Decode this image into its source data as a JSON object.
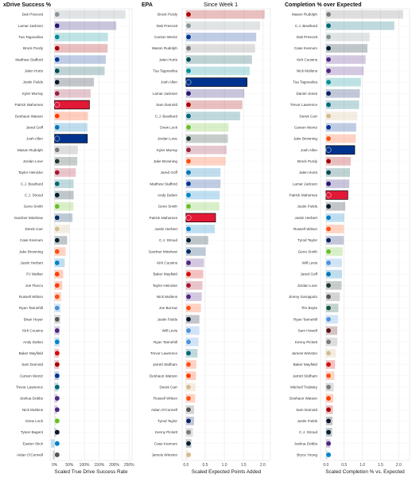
{
  "chart_data": [
    {
      "type": "bar",
      "orientation": "horizontal",
      "title": "xDrive Success %",
      "subtitle": "",
      "xlabel": "Scaled True Drive Success Rate",
      "xlim": [
        -0.15,
        2.6
      ],
      "xticks": [
        0,
        0.5,
        1.0,
        1.5,
        2.0,
        2.5
      ],
      "xtick_labels": [
        "0%",
        "50%",
        "100%",
        "150%",
        "200%",
        "250%"
      ],
      "grid": true,
      "categories": [
        "Dak Prescott",
        "Lamar Jackson",
        "Tua Tagovailoa",
        "Brock Purdy",
        "Matthew Stafford",
        "Jalen Hurts",
        "Justin Fields",
        "Kyler Murray",
        "Patrick Mahomes",
        "Deshaun Watson",
        "Jared Goff",
        "Josh Allen",
        "Mason Rudolph",
        "Jordan Love",
        "Taylor Heinicke",
        "C.J. Beathard",
        "C.J. Stroud",
        "Geno Smith",
        "Gardner Minshew",
        "Derek Carr",
        "Case Keenum",
        "Jake Browning",
        "Justin Herbert",
        "PJ Walker",
        "Joe Flacco",
        "Russell Wilson",
        "Ryan Tannehill",
        "Brian Hoyer",
        "Kirk Cousins",
        "Andy Dalton",
        "Baker Mayfield",
        "Sam Darnold",
        "Carson Wentz",
        "Trevor Lawrence",
        "Joshua Dobbs",
        "Nick Mullens",
        "Drew Lock",
        "Tyson Bagent",
        "Easton Stick",
        "Aidan O'Connell"
      ],
      "values": [
        2.38,
        2.07,
        1.79,
        1.78,
        1.72,
        1.68,
        1.32,
        1.21,
        1.17,
        1.12,
        1.1,
        1.1,
        0.78,
        0.76,
        0.71,
        0.64,
        0.64,
        0.63,
        0.6,
        0.5,
        0.42,
        0.37,
        0.34,
        0.29,
        0.26,
        0.22,
        0.2,
        0.19,
        0.17,
        0.16,
        0.15,
        0.15,
        0.14,
        0.13,
        0.1,
        0.09,
        0.06,
        0.05,
        -0.12,
        -0.06
      ],
      "teams": [
        "DAL",
        "BAL",
        "MIA",
        "SF",
        "LAR",
        "PHI",
        "CHI",
        "ARI",
        "KC",
        "CLE",
        "DET",
        "BUF",
        "PIT",
        "GB",
        "ATL",
        "JAX",
        "HOU",
        "SEA",
        "IND",
        "NO",
        "HOU",
        "CIN",
        "LAC",
        "CLE",
        "CLE",
        "DEN",
        "TEN",
        "LV",
        "MIN",
        "CAR",
        "TB",
        "SF",
        "LAR",
        "JAX",
        "MIN",
        "MIN",
        "SEA",
        "CHI",
        "LAC",
        "LV"
      ],
      "highlight": [
        "Patrick Mahomes",
        "Josh Allen"
      ]
    },
    {
      "type": "bar",
      "orientation": "horizontal",
      "title": "EPA",
      "subtitle": "Since Week 1",
      "xlabel": "Scaled Expected Points Added",
      "xlim": [
        -0.1,
        2.2
      ],
      "xticks": [
        0,
        0.5,
        1.0,
        1.5,
        2.0
      ],
      "xtick_labels": [
        "0.0",
        "0.5",
        "1.0",
        "1.5",
        "2.0"
      ],
      "grid": true,
      "categories": [
        "Brock Purdy",
        "Dak Prescott",
        "Carson Wentz",
        "Mason Rudolph",
        "Jalen Hurts",
        "Tua Tagovailoa",
        "Josh Allen",
        "Lamar Jackson",
        "Sam Darnold",
        "C.J. Beathard",
        "Drew Lock",
        "Jordan Love",
        "Kyler Murray",
        "Jake Browning",
        "Jared Goff",
        "Matthew Stafford",
        "Andy Dalton",
        "Geno Smith",
        "Patrick Mahomes",
        "Justin Herbert",
        "C.J. Stroud",
        "Gardner Minshew",
        "Kirk Cousins",
        "Baker Mayfield",
        "Taylor Heinicke",
        "Nick Mullens",
        "Joe Burrow",
        "Justin Fields",
        "Will Levis",
        "Ryan Tannehill",
        "Trevor Lawrence",
        "Jarrett Stidham",
        "Deshaun Watson",
        "Derek Carr",
        "Russell Wilson",
        "Aidan O'Connell",
        "Tyrod Taylor",
        "Kenny Pickett",
        "Case Keenum",
        "Jameis Winston"
      ],
      "values": [
        2.05,
        1.93,
        1.83,
        1.8,
        1.72,
        1.66,
        1.59,
        1.52,
        1.47,
        1.41,
        1.11,
        1.09,
        1.06,
        1.03,
        0.9,
        0.9,
        0.88,
        0.87,
        0.77,
        0.75,
        0.58,
        0.51,
        0.47,
        0.45,
        0.43,
        0.41,
        0.39,
        0.35,
        0.35,
        0.33,
        0.3,
        0.27,
        0.26,
        0.25,
        0.24,
        0.21,
        0.21,
        0.18,
        0.14,
        0.06
      ],
      "teams": [
        "SF",
        "DAL",
        "LAR",
        "PIT",
        "PHI",
        "MIA",
        "BUF",
        "BAL",
        "SF",
        "JAX",
        "SEA",
        "GB",
        "ARI",
        "CIN",
        "DET",
        "LAR",
        "CAR",
        "SEA",
        "KC",
        "LAC",
        "HOU",
        "IND",
        "MIN",
        "TB",
        "ATL",
        "MIN",
        "CIN",
        "CHI",
        "TEN",
        "TEN",
        "JAX",
        "DEN",
        "CLE",
        "NO",
        "DEN",
        "LV",
        "NYG",
        "PIT",
        "HOU",
        "NO"
      ],
      "highlight": [
        "Josh Allen",
        "Patrick Mahomes"
      ]
    },
    {
      "type": "bar",
      "orientation": "horizontal",
      "title": "Completion % over Expected",
      "subtitle": "",
      "xlabel": "Scaled Completion % vs. Expected",
      "xlim": [
        -0.15,
        2.3
      ],
      "xticks": [
        0,
        0.5,
        1.0,
        1.5,
        2.0
      ],
      "xtick_labels": [
        "0.0",
        "0.5",
        "1.0",
        "1.5",
        "2.0"
      ],
      "grid": true,
      "categories": [
        "Mason Rudolph",
        "C.J. Beathard",
        "Dak Prescott",
        "Case Keenum",
        "Kirk Cousins",
        "Nick Mullens",
        "Tua Tagovailoa",
        "Daniel Jones",
        "Trevor Lawrence",
        "Derek Carr",
        "Carson Wentz",
        "Jake Browning",
        "Josh Allen",
        "Brock Purdy",
        "Jalen Hurts",
        "Lamar Jackson",
        "Patrick Mahomes",
        "Justin Fields",
        "Justin Herbert",
        "Russell Wilson",
        "Tyrod Taylor",
        "Geno Smith",
        "Will Levis",
        "Jared Goff",
        "Jordan Love",
        "Jimmy Garoppolo",
        "Tim Boyle",
        "Ryan Tannehill",
        "Sam Howell",
        "Kenny Pickett",
        "Jameis Winston",
        "Baker Mayfield",
        "Jarrett Stidham",
        "Mitchell Trubisky",
        "Deshaun Watson",
        "Sam Darnold",
        "Justin Fields",
        "C.J. Stroud",
        "Joshua Dobbs",
        "Bryce Young"
      ],
      "values": [
        2.12,
        1.88,
        1.2,
        1.14,
        1.09,
        1.04,
        0.96,
        0.93,
        0.91,
        0.86,
        0.83,
        0.82,
        0.79,
        0.68,
        0.66,
        0.64,
        0.6,
        0.53,
        0.5,
        0.49,
        0.49,
        0.46,
        0.44,
        0.44,
        0.43,
        0.38,
        0.34,
        0.33,
        0.31,
        0.31,
        0.27,
        0.25,
        0.23,
        0.21,
        0.2,
        0.19,
        0.18,
        0.17,
        0.12,
        0.04
      ],
      "teams": [
        "PIT",
        "JAX",
        "DAL",
        "HOU",
        "MIN",
        "MIN",
        "MIA",
        "NYG",
        "JAX",
        "NO",
        "LAR",
        "CIN",
        "BUF",
        "SF",
        "PHI",
        "BAL",
        "KC",
        "CHI",
        "LAC",
        "DEN",
        "NYG",
        "SEA",
        "TEN",
        "DET",
        "GB",
        "LV",
        "NYJ",
        "TEN",
        "WAS",
        "PIT",
        "NO",
        "TB",
        "DEN",
        "PIT",
        "CLE",
        "SF",
        "CHI",
        "HOU",
        "MIN",
        "CAR"
      ],
      "highlight": [
        "Josh Allen",
        "Patrick Mahomes"
      ]
    }
  ],
  "team_colors": {
    "DAL": "#869397",
    "BAL": "#241773",
    "MIA": "#008E97",
    "SF": "#AA0000",
    "LAR": "#003594",
    "PHI": "#004C54",
    "CHI": "#0B162A",
    "ARI": "#97233F",
    "KC": "#E31837",
    "CLE": "#FF3C00",
    "DET": "#0076B6",
    "BUF": "#00338D",
    "PIT": "#7a7a7a",
    "GB": "#203731",
    "ATL": "#A71930",
    "JAX": "#006778",
    "HOU": "#03202F",
    "SEA": "#69BE28",
    "IND": "#002C5F",
    "NO": "#D3BC8D",
    "CIN": "#FB4F14",
    "LAC": "#0080C6",
    "DEN": "#FB4F14",
    "TEN": "#4B92DB",
    "LV": "#555555",
    "MIN": "#4F2683",
    "CAR": "#0085CA",
    "TB": "#D50A0A",
    "NYG": "#0B2265",
    "WAS": "#5A1414",
    "NYJ": "#125740"
  },
  "highlight_colors": {
    "Patrick Mahomes": "#E31837",
    "Josh Allen": "#00338D"
  }
}
